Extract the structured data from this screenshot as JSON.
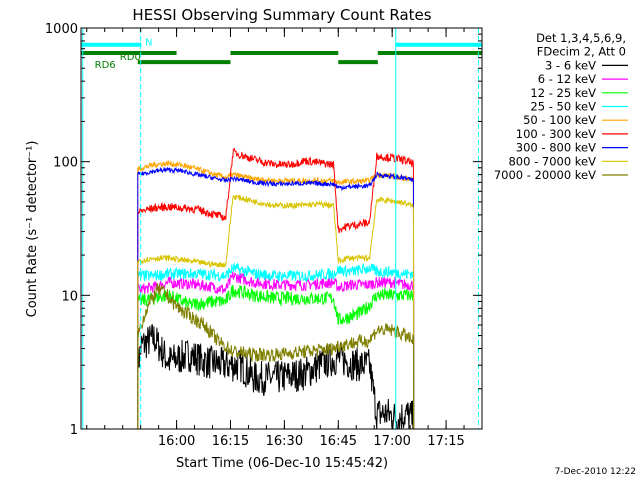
{
  "chart_data": {
    "type": "line",
    "title": "HESSI Observing Summary Count Rates",
    "xlabel": "Start Time (06-Dec-10 15:45:42)",
    "ylabel": "Count Rate (s⁻¹ detector⁻¹)",
    "yscale": "log",
    "ylim": [
      1,
      1000
    ],
    "xlim_min": [
      -12.3,
      99.3
    ],
    "x_unit": "minutes after 15:45:42",
    "x_ticks": [
      {
        "label": "16:00",
        "x": 14.3
      },
      {
        "label": "16:15",
        "x": 29.3
      },
      {
        "label": "16:30",
        "x": 44.3
      },
      {
        "label": "16:45",
        "x": 59.3
      },
      {
        "label": "17:00",
        "x": 74.3
      },
      {
        "label": "17:15",
        "x": 89.3
      }
    ],
    "y_ticks": [
      {
        "label": "1",
        "value": 1
      },
      {
        "label": "10",
        "value": 10
      },
      {
        "label": "100",
        "value": 100
      },
      {
        "label": "1000",
        "value": 1000
      }
    ],
    "legend": {
      "position": "right",
      "header": [
        "Det 1,3,4,5,6,9,",
        "FDecim 2, Att 0"
      ]
    },
    "series": [
      {
        "name": "3 - 6 keV",
        "color": "#000000",
        "noise": 0.3,
        "points": [
          [
            3.5,
            3
          ],
          [
            4.5,
            4.2
          ],
          [
            8,
            4.8
          ],
          [
            12,
            3.2
          ],
          [
            18,
            3.6
          ],
          [
            22,
            3.2
          ],
          [
            28,
            3.0
          ],
          [
            32,
            3.0
          ],
          [
            36,
            2.4
          ],
          [
            42,
            2.4
          ],
          [
            50,
            2.6
          ],
          [
            56,
            3.2
          ],
          [
            59.3,
            3.4
          ],
          [
            63,
            3.1
          ],
          [
            65.5,
            3.0
          ],
          [
            68,
            3.0
          ],
          [
            70,
            1.3
          ],
          [
            73,
            1.3
          ],
          [
            76,
            1.2
          ],
          [
            78,
            1.3
          ],
          [
            80.3,
            1.2
          ]
        ]
      },
      {
        "name": "6 - 12 keV",
        "color": "#ff00ff",
        "noise": 0.1,
        "points": [
          [
            3.5,
            11
          ],
          [
            8,
            11.5
          ],
          [
            12,
            12.5
          ],
          [
            20,
            12
          ],
          [
            25,
            11.5
          ],
          [
            28,
            11
          ],
          [
            30,
            14
          ],
          [
            36,
            12.5
          ],
          [
            42,
            12
          ],
          [
            50,
            12
          ],
          [
            58,
            12.5
          ],
          [
            59.3,
            11.5
          ],
          [
            63,
            12
          ],
          [
            68,
            12
          ],
          [
            70,
            12.5
          ],
          [
            74,
            12.5
          ],
          [
            78,
            12
          ],
          [
            80.3,
            12
          ]
        ]
      },
      {
        "name": "12 - 25 keV",
        "color": "#00ff00",
        "noise": 0.12,
        "points": [
          [
            3.5,
            9
          ],
          [
            8,
            9.5
          ],
          [
            12,
            10
          ],
          [
            18,
            8.5
          ],
          [
            25,
            9
          ],
          [
            28,
            9
          ],
          [
            30,
            11
          ],
          [
            36,
            10
          ],
          [
            42,
            9.5
          ],
          [
            50,
            9.5
          ],
          [
            58,
            9.5
          ],
          [
            59.3,
            6.5
          ],
          [
            63,
            7
          ],
          [
            66,
            7.5
          ],
          [
            68,
            8.5
          ],
          [
            70,
            10
          ],
          [
            74,
            10
          ],
          [
            78,
            10
          ],
          [
            80.3,
            10
          ]
        ]
      },
      {
        "name": "25 - 50 keV",
        "color": "#00ffff",
        "noise": 0.1,
        "points": [
          [
            3.5,
            14
          ],
          [
            8,
            14
          ],
          [
            12,
            14.5
          ],
          [
            20,
            14.5
          ],
          [
            28,
            14
          ],
          [
            30,
            16
          ],
          [
            36,
            14.5
          ],
          [
            42,
            14
          ],
          [
            50,
            14
          ],
          [
            58,
            14.5
          ],
          [
            59.3,
            15.5
          ],
          [
            63,
            15
          ],
          [
            68,
            16
          ],
          [
            70,
            15
          ],
          [
            74,
            15
          ],
          [
            78,
            14.5
          ],
          [
            80.3,
            14.5
          ]
        ]
      },
      {
        "name": "50 - 100 keV",
        "color": "#ffa500",
        "noise": 0.05,
        "points": [
          [
            3.5,
            88
          ],
          [
            8,
            95
          ],
          [
            12,
            97
          ],
          [
            16,
            94
          ],
          [
            20,
            88
          ],
          [
            25,
            80
          ],
          [
            28,
            76
          ],
          [
            30,
            80
          ],
          [
            36,
            74
          ],
          [
            42,
            72
          ],
          [
            50,
            72
          ],
          [
            58,
            72
          ],
          [
            59.3,
            70
          ],
          [
            63,
            71
          ],
          [
            68,
            72
          ],
          [
            70,
            80
          ],
          [
            74,
            78
          ],
          [
            78,
            75
          ],
          [
            80.3,
            73
          ]
        ]
      },
      {
        "name": "100 - 300 keV",
        "color": "#ff0000",
        "noise": 0.07,
        "points": [
          [
            3.5,
            42
          ],
          [
            8,
            45
          ],
          [
            12,
            46
          ],
          [
            20,
            44
          ],
          [
            25,
            40
          ],
          [
            28,
            38
          ],
          [
            30,
            118
          ],
          [
            34,
            108
          ],
          [
            38,
            100
          ],
          [
            42,
            95
          ],
          [
            46,
            95
          ],
          [
            50,
            102
          ],
          [
            54,
            98
          ],
          [
            58,
            95
          ],
          [
            59.3,
            31
          ],
          [
            62,
            33
          ],
          [
            65,
            34
          ],
          [
            68,
            35
          ],
          [
            70,
            110
          ],
          [
            74,
            107
          ],
          [
            78,
            102
          ],
          [
            80.3,
            96
          ]
        ]
      },
      {
        "name": "300 - 800 keV",
        "color": "#0000ff",
        "noise": 0.04,
        "points": [
          [
            3.5,
            80
          ],
          [
            8,
            85
          ],
          [
            12,
            87
          ],
          [
            16,
            85
          ],
          [
            20,
            80
          ],
          [
            25,
            75
          ],
          [
            28,
            72
          ],
          [
            30,
            75
          ],
          [
            36,
            70
          ],
          [
            42,
            68
          ],
          [
            50,
            69
          ],
          [
            58,
            68
          ],
          [
            59.3,
            64
          ],
          [
            63,
            65
          ],
          [
            68,
            66
          ],
          [
            70,
            80
          ],
          [
            74,
            78
          ],
          [
            78,
            75
          ],
          [
            80.3,
            72
          ]
        ]
      },
      {
        "name": "800 - 7000 keV",
        "color": "#d8c400",
        "noise": 0.05,
        "points": [
          [
            3.5,
            18
          ],
          [
            8,
            19
          ],
          [
            12,
            19
          ],
          [
            18,
            18
          ],
          [
            25,
            17
          ],
          [
            28,
            17
          ],
          [
            30,
            55
          ],
          [
            34,
            52
          ],
          [
            38,
            49
          ],
          [
            42,
            47
          ],
          [
            48,
            47
          ],
          [
            54,
            48
          ],
          [
            58,
            47
          ],
          [
            59.3,
            18
          ],
          [
            62,
            19
          ],
          [
            66,
            19
          ],
          [
            68,
            19
          ],
          [
            70,
            52
          ],
          [
            74,
            51
          ],
          [
            78,
            49
          ],
          [
            80.3,
            46
          ]
        ]
      },
      {
        "name": "7000 - 20000 keV",
        "color": "#808000",
        "noise": 0.12,
        "points": [
          [
            3.5,
            5
          ],
          [
            6,
            8
          ],
          [
            9,
            11
          ],
          [
            11,
            10.5
          ],
          [
            13,
            9
          ],
          [
            15,
            8
          ],
          [
            18,
            7
          ],
          [
            22,
            6
          ],
          [
            26,
            4.5
          ],
          [
            30,
            3.8
          ],
          [
            36,
            3.6
          ],
          [
            42,
            3.6
          ],
          [
            50,
            3.8
          ],
          [
            58,
            4.0
          ],
          [
            59.3,
            4.2
          ],
          [
            63,
            4.4
          ],
          [
            68,
            4.6
          ],
          [
            70,
            5.5
          ],
          [
            74,
            5.5
          ],
          [
            78,
            5
          ],
          [
            80.3,
            4.5
          ]
        ]
      }
    ],
    "vlines": [
      {
        "x": -11.8,
        "style": "solid",
        "color": "#00ffff"
      },
      {
        "x": 4.3,
        "style": "dashed",
        "color": "#00ffff"
      },
      {
        "x": 75.3,
        "style": "solid",
        "color": "#00ffff"
      },
      {
        "x": 98.3,
        "style": "dashed",
        "color": "#00ffff"
      }
    ],
    "state_bars": [
      {
        "label": "N",
        "color": "#00ffff",
        "y": 750,
        "segments": [
          [
            -12.3,
            4.5
          ],
          [
            75.3,
            99.3
          ]
        ]
      },
      {
        "label": "RD0",
        "color": "#007f00",
        "y": 650,
        "segments": [
          [
            -12.3,
            14.3
          ],
          [
            29.3,
            59.3
          ],
          [
            70.3,
            99.3
          ]
        ]
      },
      {
        "label": "RD6",
        "color": "#007f00",
        "y": 555,
        "segments": [
          [
            3.5,
            29.3
          ],
          [
            59.3,
            70.3
          ]
        ]
      }
    ]
  },
  "footer": {
    "date_stamp": "7-Dec-2010 12:22"
  }
}
